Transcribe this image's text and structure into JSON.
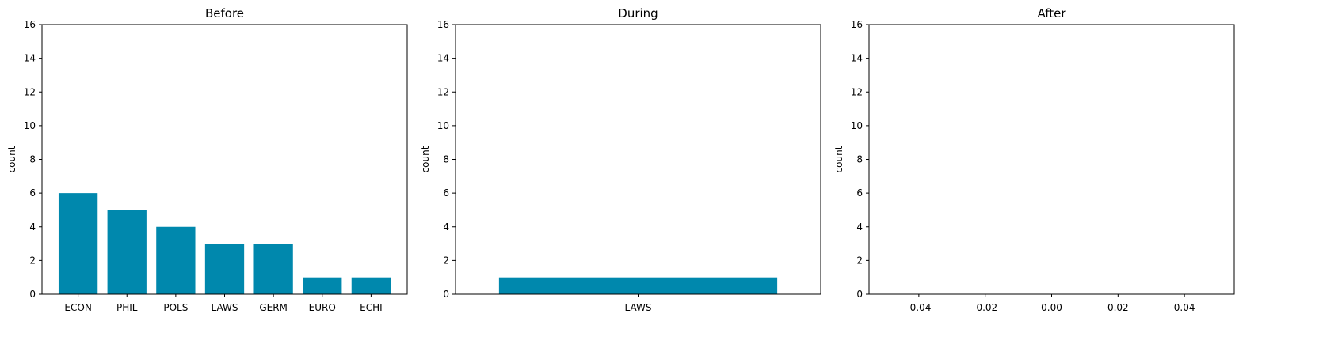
{
  "chart_data": [
    {
      "type": "bar",
      "title": "Before",
      "xlabel": "",
      "ylabel": "count",
      "ylim": [
        0,
        16
      ],
      "yticks": [
        0,
        2,
        4,
        6,
        8,
        10,
        12,
        14,
        16
      ],
      "categories": [
        "ECON",
        "PHIL",
        "POLS",
        "LAWS",
        "GERM",
        "EURO",
        "ECHI"
      ],
      "values": [
        6,
        5,
        4,
        3,
        3,
        1,
        1
      ],
      "color": "#0088ad",
      "grid": false
    },
    {
      "type": "bar",
      "title": "During",
      "xlabel": "",
      "ylabel": "count",
      "ylim": [
        0,
        16
      ],
      "yticks": [
        0,
        2,
        4,
        6,
        8,
        10,
        12,
        14,
        16
      ],
      "categories": [
        "LAWS"
      ],
      "values": [
        1
      ],
      "color": "#0088ad",
      "grid": false
    },
    {
      "type": "bar",
      "title": "After",
      "xlabel": "",
      "ylabel": "count",
      "ylim": [
        0,
        16
      ],
      "yticks": [
        0,
        2,
        4,
        6,
        8,
        10,
        12,
        14,
        16
      ],
      "xlim": [
        -0.055,
        0.055
      ],
      "xticks": [
        "-0.04",
        "-0.02",
        "0.00",
        "0.02",
        "0.04"
      ],
      "xtick_values": [
        -0.04,
        -0.02,
        0.0,
        0.02,
        0.04
      ],
      "categories": [],
      "values": [],
      "color": "#0088ad",
      "grid": false
    }
  ]
}
